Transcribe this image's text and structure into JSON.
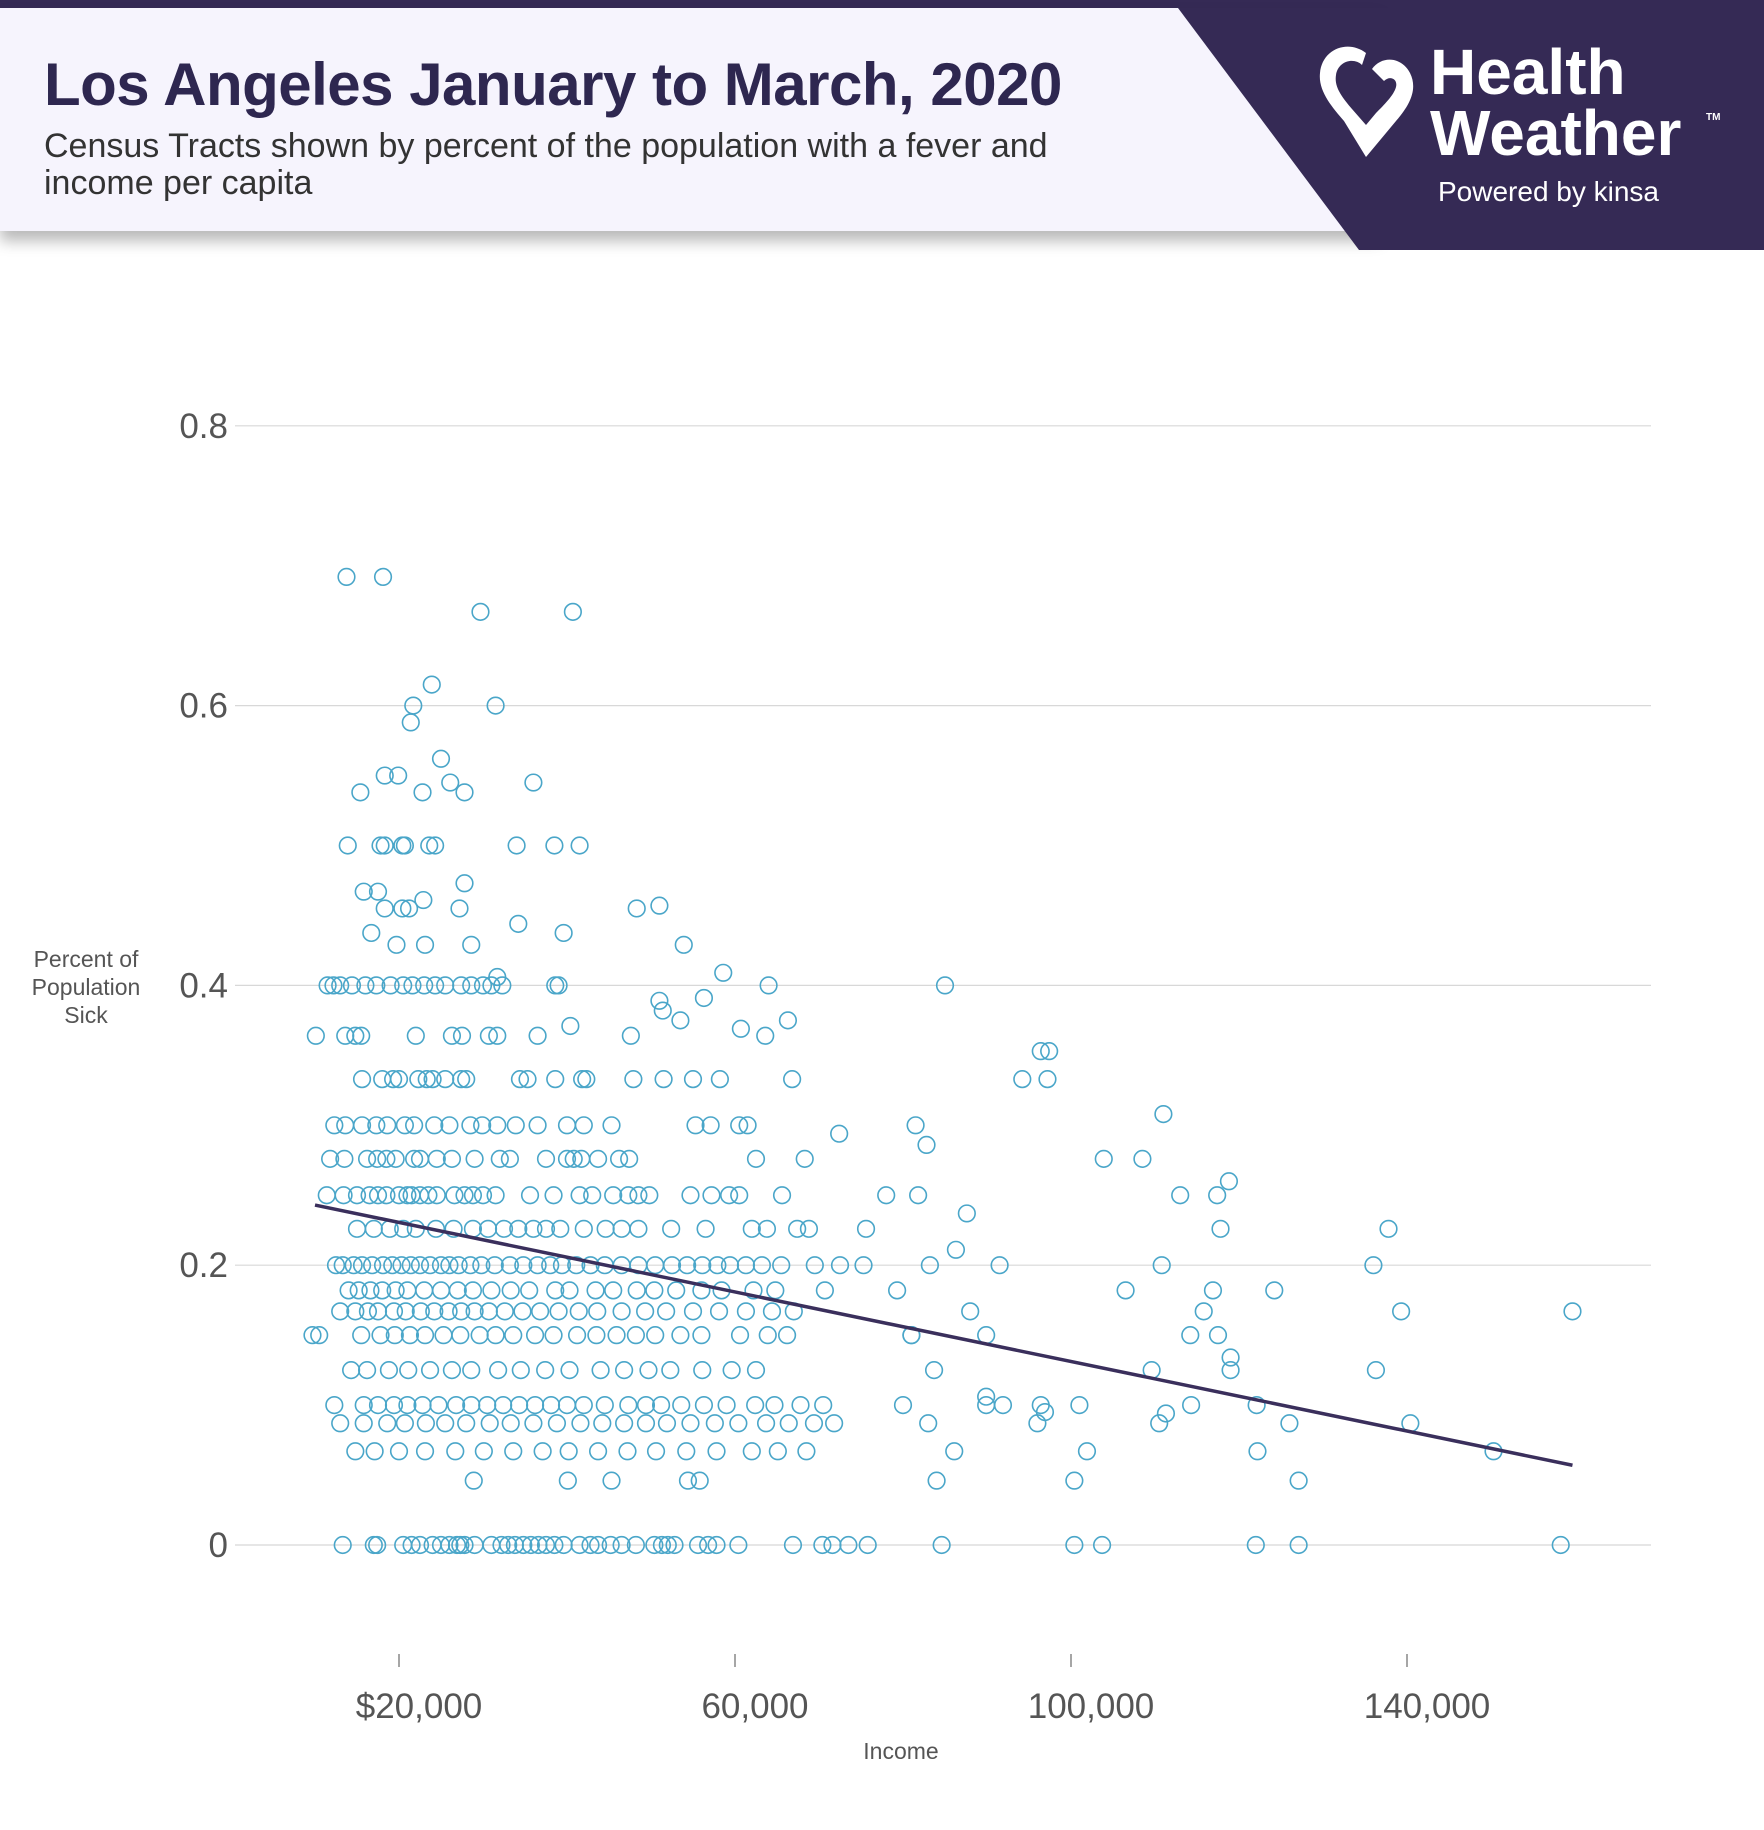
{
  "header": {
    "title": "Los Angeles January to March, 2020",
    "subtitle": "Census Tracts shown by percent of the population with a fever and income per capita"
  },
  "logo": {
    "line1": "Health",
    "line2": "Weather",
    "trademark": "TM",
    "powered_by": "Powered by kinsa"
  },
  "colors": {
    "brand_dark": "#352a55",
    "panel": "#f6f4fd",
    "marker": "#4aa6c9",
    "trend": "#3a2f5c"
  },
  "chart_data": {
    "type": "scatter",
    "title": "Los Angeles January to March, 2020",
    "xlabel": "Income",
    "ylabel": [
      "Percent of",
      "Population",
      "Sick"
    ],
    "xlim": [
      0,
      170000
    ],
    "ylim": [
      0,
      0.8
    ],
    "x_ticks": [
      20000,
      60000,
      100000,
      140000
    ],
    "x_tick_labels": [
      "$20,000",
      "60,000",
      "100,000",
      "140,000"
    ],
    "y_ticks": [
      0,
      0.2,
      0.4,
      0.6,
      0.8
    ],
    "y_tick_labels": [
      "0",
      "0.2",
      "0.4",
      "0.6",
      "0.8"
    ],
    "grid": "horizontal",
    "x_units_thousands": true,
    "trendline": {
      "x": [
        10,
        159.7
      ],
      "y": [
        0.243,
        0.057
      ]
    },
    "bands": [
      {
        "y": 0.5,
        "x": [
          13.9,
          17.8,
          18.3,
          20.4,
          20.7,
          23.6,
          24.3,
          34,
          38.5,
          41.5
        ]
      },
      {
        "y": 0.4,
        "x": [
          11.5,
          12.2,
          13,
          14.4,
          16,
          17.3,
          19,
          20.5,
          21.6,
          23,
          24.3,
          25.5,
          27.4,
          28.6,
          30,
          31,
          32.3,
          38.6,
          39,
          64,
          85
        ]
      },
      {
        "y": 0.364,
        "x": [
          10.1,
          13.6,
          14.8,
          15.5,
          22,
          26.3,
          27.5,
          30.7,
          31.7,
          36.5,
          47.6,
          63.6
        ]
      },
      {
        "y": 0.333,
        "x": [
          15.6,
          18,
          19.3,
          20,
          22.3,
          23.3,
          24,
          25.5,
          27.4,
          28,
          34.4,
          35.3,
          38.6,
          41.8,
          42.3,
          47.9,
          51.5,
          55,
          58.2,
          66.8,
          94.2,
          97.2
        ]
      },
      {
        "y": 0.3,
        "x": [
          12.3,
          13.6,
          15.6,
          17.3,
          18.6,
          20.7,
          21.8,
          24.2,
          26,
          28.5,
          29.9,
          31.7,
          33.9,
          36.5,
          40,
          42,
          45.3,
          55.3,
          57.1,
          60.5,
          61.5,
          81.5
        ]
      },
      {
        "y": 0.276,
        "x": [
          11.8,
          13.5,
          16.2,
          17.4,
          18.5,
          19.6,
          21.8,
          22.5,
          24.5,
          26.3,
          29,
          32,
          33.2,
          37.5,
          40,
          40.8,
          41.7,
          43.7,
          46.2,
          47.4,
          62.5,
          68.3,
          103.9,
          108.5
        ]
      },
      {
        "y": 0.25,
        "x": [
          11.4,
          13.4,
          15,
          16.5,
          17.5,
          18.5,
          20,
          21,
          21.5,
          22.5,
          23.5,
          24.5,
          26.6,
          27.8,
          28.8,
          30,
          31.5,
          35.6,
          38.4,
          41.5,
          43,
          45.5,
          47.3,
          48.5,
          49.8,
          54.7,
          57.2,
          59.3,
          60.5,
          65.6,
          78,
          81.8,
          113,
          117.4
        ]
      },
      {
        "y": 0.226,
        "x": [
          15,
          17,
          18.9,
          20.5,
          22,
          24.4,
          26.5,
          28.8,
          30.6,
          32.5,
          34.2,
          36,
          37.5,
          39.2,
          42,
          44.6,
          46.5,
          48.5,
          52.4,
          56.5,
          62,
          63.8,
          67.4,
          68.8,
          75.6,
          117.8,
          137.8
        ]
      },
      {
        "y": 0.2,
        "x": [
          12.5,
          13.3,
          14.6,
          15.6,
          16.8,
          18.1,
          19.2,
          20.3,
          21.4,
          22.5,
          23.7,
          25,
          26,
          27.1,
          28.5,
          29.8,
          31.4,
          33.2,
          34.8,
          36.5,
          38,
          39.4,
          41.1,
          42.8,
          44.5,
          46.5,
          48.5,
          50.5,
          52.5,
          54.3,
          56.1,
          57.9,
          59.4,
          61.3,
          63.2,
          65.5,
          69.5,
          72.5,
          75.3,
          83.2,
          91.5,
          110.8,
          136
        ]
      },
      {
        "y": 0.182,
        "x": [
          14,
          15.2,
          16.6,
          18,
          19.6,
          21,
          23,
          25,
          27,
          28.8,
          31,
          33.3,
          35.5,
          38.6,
          40.3,
          43.4,
          45.5,
          48.3,
          50.4,
          53,
          56,
          58.4,
          62.2,
          64.8,
          70.7,
          79.3,
          106.5,
          124.2
        ]
      },
      {
        "y": 0.167,
        "x": [
          13,
          14.8,
          16.3,
          17.5,
          19.4,
          20.8,
          22.6,
          24.2,
          25.9,
          27.4,
          29,
          30.7,
          32.6,
          34.7,
          36.8,
          39,
          41.4,
          43.6,
          46.5,
          49.3,
          51.8,
          55,
          58.1,
          61.3,
          64.4,
          67,
          88,
          115.8,
          139.3,
          159.7
        ]
      },
      {
        "y": 0.15,
        "x": [
          9.7,
          10.5,
          15.5,
          17.8,
          19.5,
          21.3,
          23.1,
          25.3,
          27.3,
          29.6,
          31.5,
          33.6,
          36.2,
          38.4,
          41.2,
          43.5,
          45.9,
          48.2,
          50.5,
          53.5,
          56,
          60.6,
          63.9,
          66.2,
          81,
          89.9,
          114.2,
          117.5
        ]
      },
      {
        "y": 0.125,
        "x": [
          14.3,
          16.2,
          18.8,
          21.1,
          23.7,
          26.3,
          28.6,
          31.8,
          34.5,
          37.4,
          40.3,
          44,
          46.8,
          49.7,
          52.3,
          56.1,
          59.6,
          62.5,
          83.7,
          109.6,
          119,
          136.3
        ]
      },
      {
        "y": 0.1,
        "x": [
          12.3,
          15.8,
          17.5,
          19.4,
          21,
          22.8,
          24.7,
          26.8,
          28.6,
          30.5,
          32.4,
          34.3,
          36.2,
          38.1,
          40,
          42,
          44.5,
          47.3,
          49.4,
          51.2,
          53.6,
          56.3,
          59,
          62.4,
          64.7,
          67.8,
          70.5,
          80,
          89.9,
          91.9,
          96.4,
          101,
          114.3,
          122.1
        ]
      },
      {
        "y": 0.087,
        "x": [
          13,
          15.8,
          18.6,
          20.7,
          23.2,
          25.5,
          28,
          30.8,
          33.3,
          36,
          38.8,
          41.6,
          44.2,
          46.8,
          49.4,
          51.9,
          54.7,
          57.6,
          60.4,
          63.7,
          66.4,
          69.4,
          71.8,
          83,
          96,
          110.5,
          126,
          140.4
        ]
      },
      {
        "y": 0.067,
        "x": [
          14.8,
          17.1,
          20,
          23.1,
          26.7,
          30.1,
          33.6,
          37.1,
          40.2,
          43.7,
          47.2,
          50.6,
          54.2,
          57.8,
          62,
          65.1,
          68.5,
          86.1,
          101.9,
          122.2,
          150.3
        ]
      },
      {
        "y": 0.046,
        "x": [
          28.9,
          40.1,
          45.3,
          54.4,
          55.8,
          84,
          100.4,
          127.1
        ]
      },
      {
        "y": 0,
        "x": [
          13.3,
          17,
          17.4,
          20.5,
          21.5,
          22.5,
          24,
          25,
          26,
          26.9,
          27.3,
          27.8,
          29,
          31,
          32.2,
          33,
          33.8,
          34.8,
          35.7,
          36.6,
          37.5,
          38.5,
          39.6,
          41.5,
          42.8,
          43.7,
          45.2,
          46.5,
          48.2,
          50.4,
          51.3,
          52,
          52.8,
          55.6,
          56.8,
          57.8,
          60.4,
          66.9,
          70.4,
          71.6,
          73.5,
          75.8,
          84.6,
          100.4,
          103.7,
          122,
          127.1,
          158.3
        ]
      }
    ],
    "points": [
      [
        13.75,
        0.692
      ],
      [
        18.1,
        0.692
      ],
      [
        29.7,
        0.667
      ],
      [
        40.7,
        0.667
      ],
      [
        23.9,
        0.615
      ],
      [
        21.7,
        0.6
      ],
      [
        31.5,
        0.6
      ],
      [
        21.4,
        0.588
      ],
      [
        25,
        0.562
      ],
      [
        36,
        0.545
      ],
      [
        15.4,
        0.538
      ],
      [
        22.8,
        0.538
      ],
      [
        27.8,
        0.538
      ],
      [
        26.1,
        0.545
      ],
      [
        18.3,
        0.55
      ],
      [
        19.9,
        0.55
      ],
      [
        15.8,
        0.467
      ],
      [
        17.5,
        0.467
      ],
      [
        27.8,
        0.473
      ],
      [
        22.9,
        0.461
      ],
      [
        18.3,
        0.455
      ],
      [
        20.4,
        0.455
      ],
      [
        21.2,
        0.455
      ],
      [
        27.2,
        0.455
      ],
      [
        48.3,
        0.455
      ],
      [
        51,
        0.457
      ],
      [
        16.7,
        0.4375
      ],
      [
        39.6,
        0.4375
      ],
      [
        34.2,
        0.444
      ],
      [
        28.6,
        0.429
      ],
      [
        19.7,
        0.429
      ],
      [
        23.1,
        0.429
      ],
      [
        53.9,
        0.429
      ],
      [
        58.6,
        0.409
      ],
      [
        31.7,
        0.406
      ],
      [
        56.3,
        0.391
      ],
      [
        51,
        0.389
      ],
      [
        51.4,
        0.382
      ],
      [
        53.5,
        0.375
      ],
      [
        66.3,
        0.375
      ],
      [
        60.7,
        0.369
      ],
      [
        40.4,
        0.371
      ],
      [
        96.4,
        0.353
      ],
      [
        97.4,
        0.353
      ],
      [
        111,
        0.308
      ],
      [
        72.4,
        0.294
      ],
      [
        82.8,
        0.286
      ],
      [
        118.8,
        0.26
      ],
      [
        87.6,
        0.237
      ],
      [
        86.3,
        0.211
      ],
      [
        116.9,
        0.182
      ],
      [
        81,
        0.15
      ],
      [
        119,
        0.134
      ],
      [
        89.9,
        0.106
      ],
      [
        96.9,
        0.095
      ],
      [
        111.3,
        0.094
      ]
    ]
  }
}
